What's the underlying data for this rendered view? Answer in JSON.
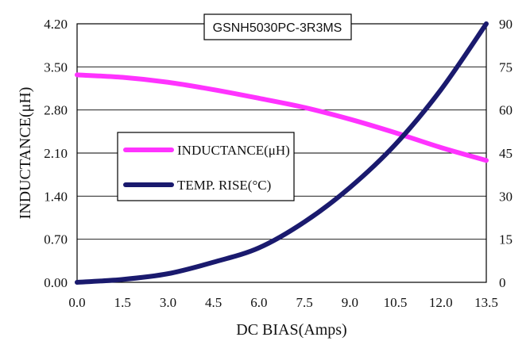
{
  "chart_data": {
    "type": "line",
    "title": "GSNH5030PC-3R3MS",
    "xlabel": "DC BIAS(Amps)",
    "ylabel": "INDUCTANCE(μH)",
    "ylabel_right": "",
    "x_ticks": [
      "0.0",
      "1.5",
      "3.0",
      "4.5",
      "6.0",
      "7.5",
      "9.0",
      "10.5",
      "12.0",
      "13.5"
    ],
    "y_ticks": [
      "0.00",
      "0.70",
      "1.40",
      "2.10",
      "2.80",
      "3.50",
      "4.20"
    ],
    "y2_ticks": [
      "0",
      "15",
      "30",
      "45",
      "60",
      "75",
      "90"
    ],
    "xlim": [
      0,
      13.5
    ],
    "ylim": [
      0,
      4.2
    ],
    "y2lim": [
      0,
      90
    ],
    "grid": "horizontal",
    "legend_placement": "center-left",
    "series": [
      {
        "name": "INDUCTANCE(μH)",
        "axis": "left",
        "color": "#ff33ff",
        "x": [
          0,
          1.5,
          3.0,
          4.5,
          6.0,
          7.5,
          9.0,
          10.5,
          12.0,
          13.5
        ],
        "y": [
          3.37,
          3.33,
          3.25,
          3.13,
          2.99,
          2.84,
          2.65,
          2.43,
          2.19,
          1.98
        ]
      },
      {
        "name": "TEMP. RISE(°C)",
        "axis": "right",
        "color": "#1a1a6e",
        "x": [
          0,
          1.5,
          3.0,
          4.5,
          6.0,
          7.5,
          9.0,
          10.5,
          12.0,
          13.5
        ],
        "y": [
          0,
          1,
          3,
          7,
          12,
          21,
          33,
          48,
          67,
          90
        ]
      }
    ]
  }
}
